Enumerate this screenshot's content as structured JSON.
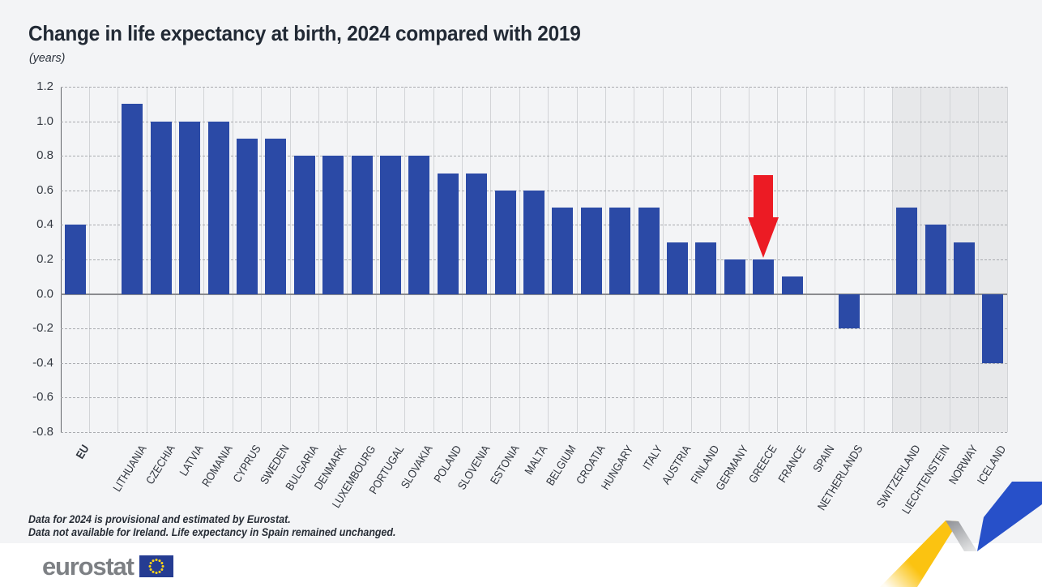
{
  "header": {
    "title": "Change in life expectancy at birth, 2024 compared with 2019",
    "unit": "(years)"
  },
  "notes": {
    "line1": "Data for 2024 is provisional and estimated by Eurostat.",
    "line2": "Data not available for Ireland. Life expectancy in Spain remained unchanged."
  },
  "footer": {
    "logo_text": "eurostat",
    "logo_flag_icon": "eu-flag-icon"
  },
  "colors": {
    "bar_blue": "#2b4aa6",
    "arrow_red": "#ec1b24",
    "shaded_band_gray": "#e7e8ea",
    "page_background": "#f3f4f6",
    "logo_gray": "#7d8084",
    "flag_blue": "#253c92",
    "star_yellow": "#ffd617",
    "ribbon_yellow": "#fbc311",
    "ribbon_blue": "#2750c9",
    "ribbon_gray": "#9b9da0"
  },
  "chart_data": {
    "type": "bar",
    "title": "Change in life expectancy at birth, 2024 compared with 2019",
    "ylabel": "(years)",
    "xlabel": "",
    "ylim": [
      -0.8,
      1.2
    ],
    "ytick_labels": [
      "1.2",
      "1.0",
      "0.8",
      "0.6",
      "0.4",
      "0.2",
      "0.0",
      "-0.2",
      "-0.4",
      "-0.6",
      "-0.8"
    ],
    "grid": "horizontal dashed gridlines every 0.2, light vertical column separators, solid zero line",
    "legend": "none",
    "categories": [
      "EU",
      "LITHUANIA",
      "CZECHIA",
      "LATVIA",
      "ROMANIA",
      "CYPRUS",
      "SWEDEN",
      "BULGARIA",
      "DENMARK",
      "LUXEMBOURG",
      "PORTUGAL",
      "SLOVAKIA",
      "POLAND",
      "SLOVENIA",
      "ESTONIA",
      "MALTA",
      "BELGIUM",
      "CROATIA",
      "HUNGARY",
      "ITALY",
      "AUSTRIA",
      "FINLAND",
      "GERMANY",
      "GREECE",
      "FRANCE",
      "SPAIN",
      "NETHERLANDS",
      "SWITZERLAND",
      "LIECHTENSTEIN",
      "NORWAY",
      "ICELAND"
    ],
    "values": [
      0.4,
      1.1,
      1.0,
      1.0,
      1.0,
      0.9,
      0.9,
      0.8,
      0.8,
      0.8,
      0.8,
      0.8,
      0.7,
      0.7,
      0.6,
      0.6,
      0.5,
      0.5,
      0.5,
      0.5,
      0.3,
      0.3,
      0.2,
      0.2,
      0.1,
      0.0,
      -0.2,
      0.5,
      0.4,
      0.3,
      -0.4
    ],
    "bold_category": "EU",
    "separators_after": [
      "EU",
      "NETHERLANDS"
    ],
    "shaded_region": {
      "categories": [
        "SWITZERLAND",
        "LIECHTENSTEIN",
        "NORWAY",
        "ICELAND"
      ],
      "color": "#e7e8ea"
    },
    "annotations": [
      {
        "type": "down-arrow",
        "category": "GREECE",
        "color": "#ec1b24"
      }
    ]
  }
}
